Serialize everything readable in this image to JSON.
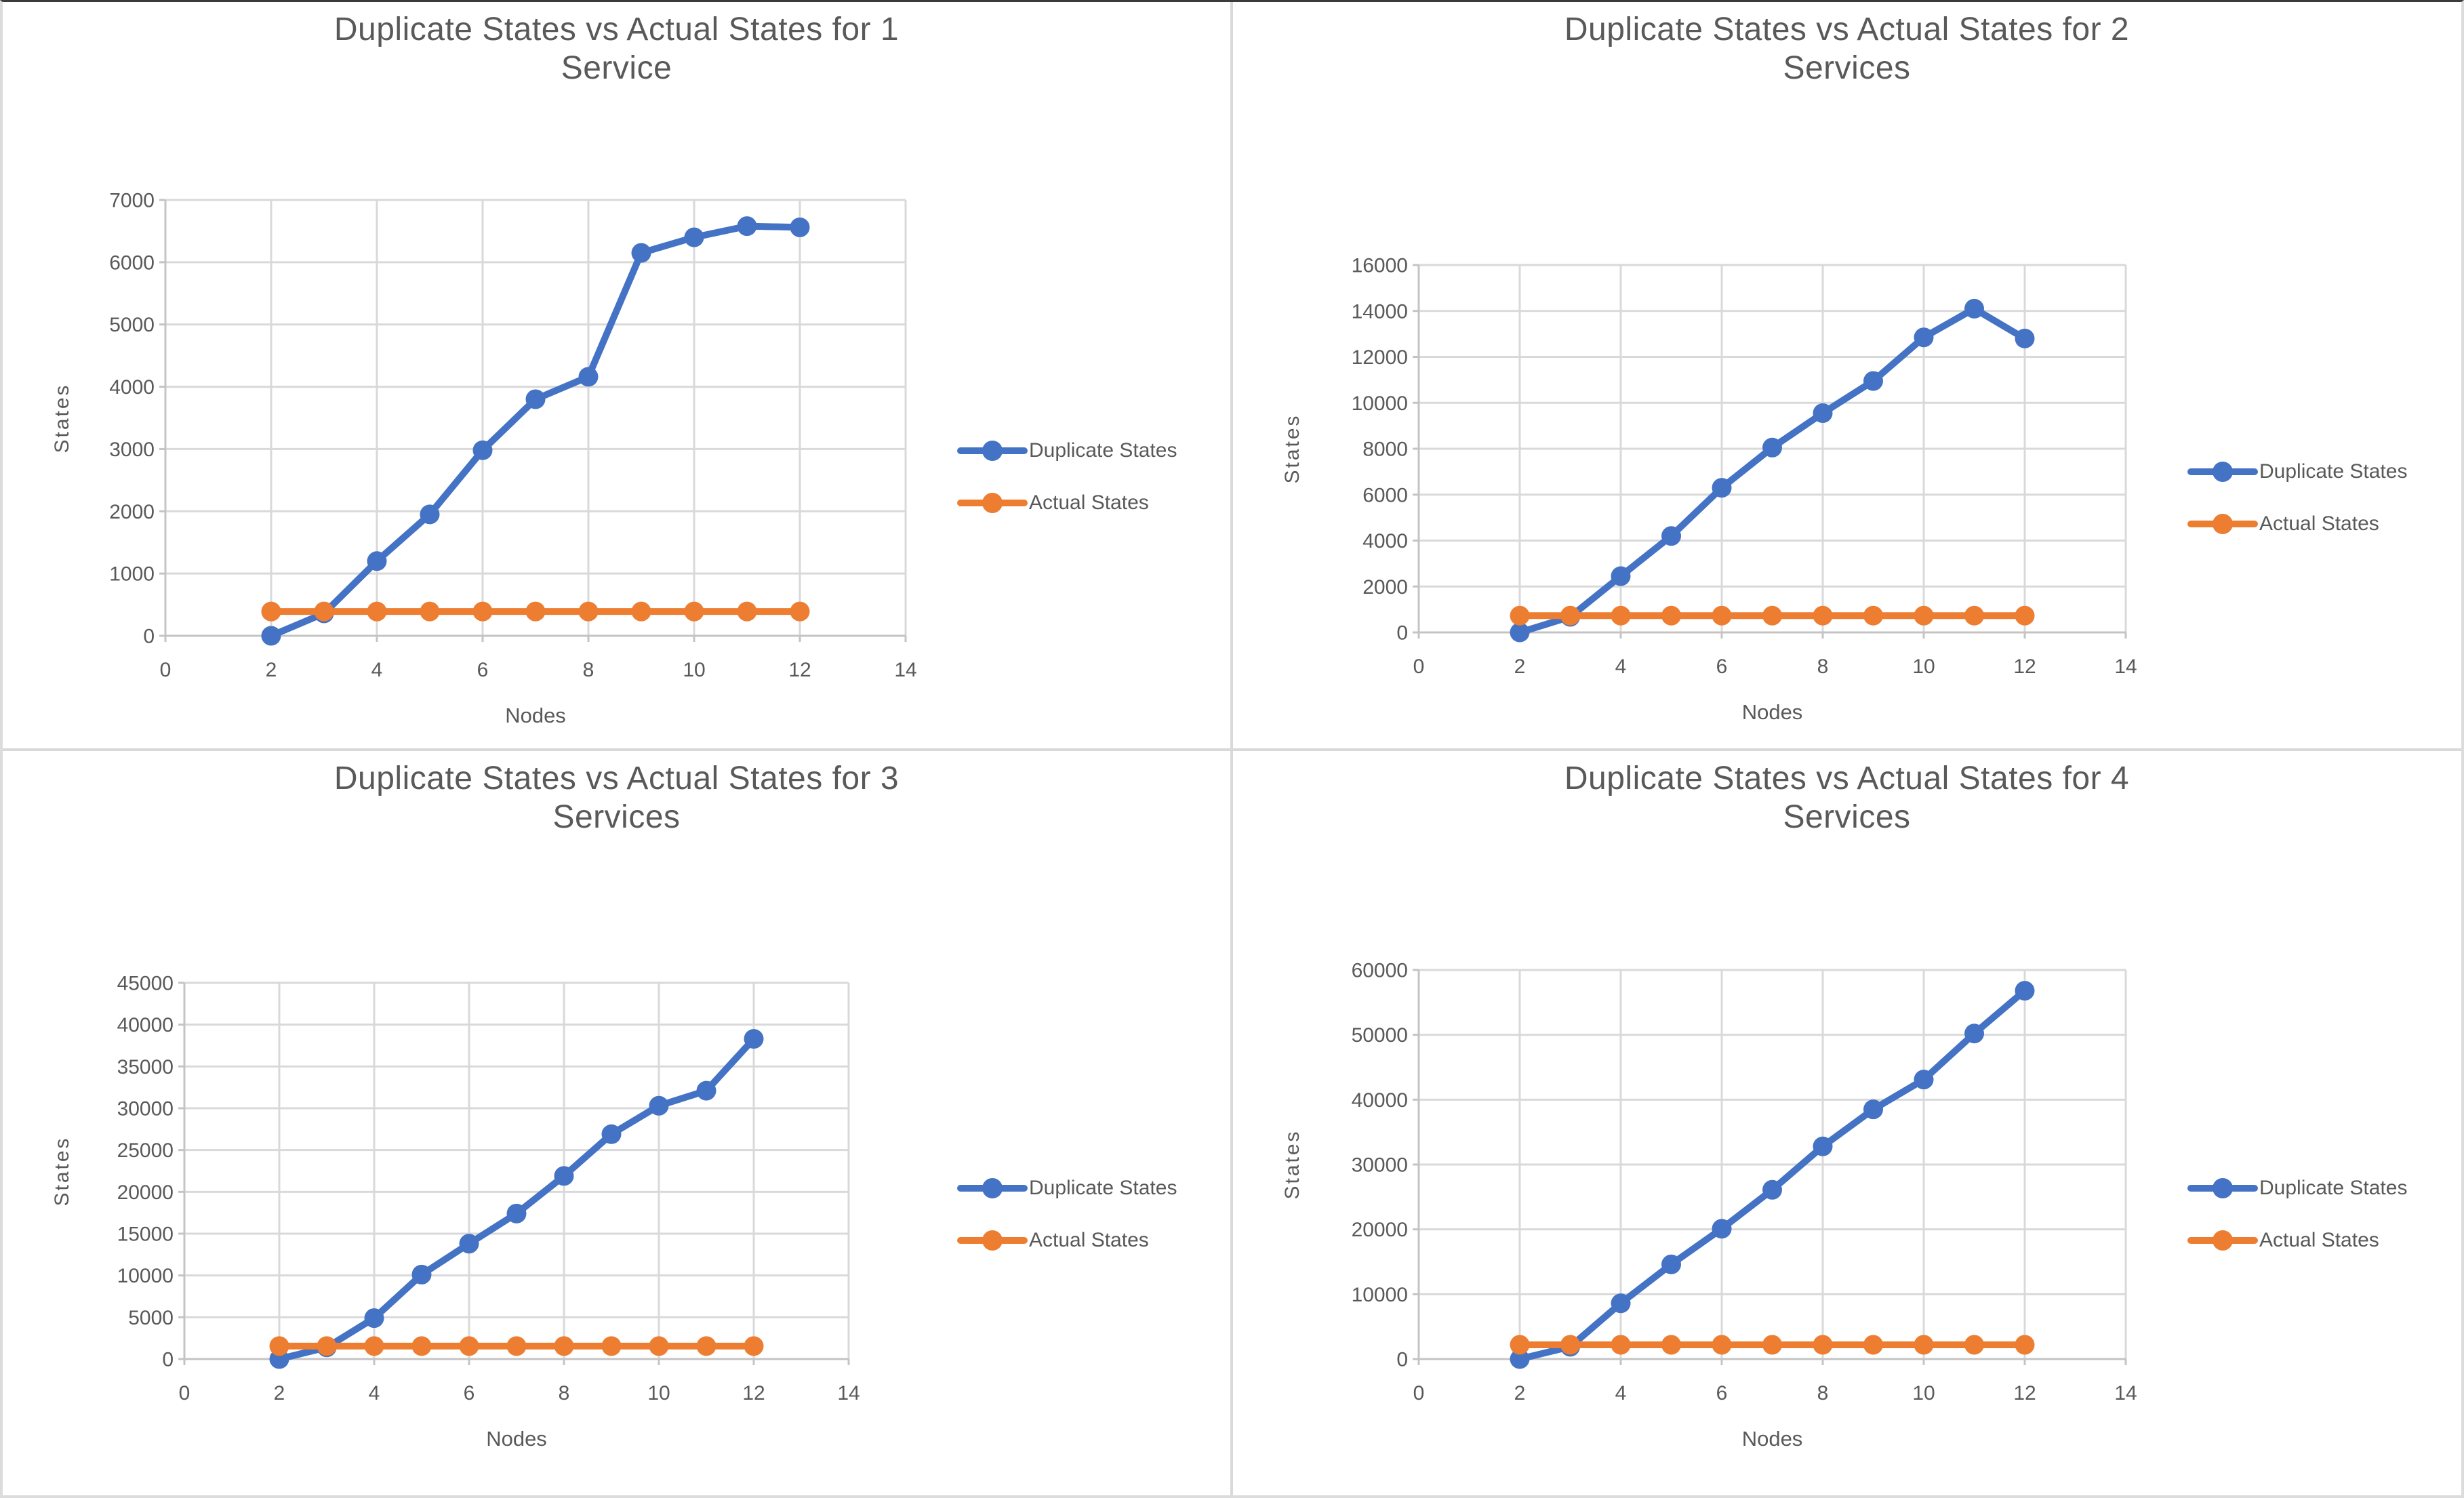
{
  "colors": {
    "duplicate_series": "#4472C4",
    "actual_series": "#ED7D31",
    "text": "#595959",
    "gridline": "#D9D9D9",
    "axis_line": "#C4C4C4",
    "panel_divider": "#D9D9D9"
  },
  "chart_data": [
    {
      "type": "line",
      "title_line1": "Duplicate States vs Actual States for 1",
      "title_line2": "Service",
      "xlabel": "Nodes",
      "ylabel": "States",
      "x": [
        2,
        3,
        4,
        5,
        6,
        7,
        8,
        9,
        10,
        11,
        12
      ],
      "series": [
        {
          "name": "Duplicate States",
          "color": "#4472C4",
          "values": [
            0,
            360,
            1200,
            1950,
            2980,
            3800,
            4160,
            6150,
            6400,
            6580,
            6560
          ]
        },
        {
          "name": "Actual States",
          "color": "#ED7D31",
          "values": [
            390,
            390,
            390,
            390,
            390,
            390,
            390,
            390,
            390,
            390,
            390
          ]
        }
      ],
      "xlim": [
        0,
        14
      ],
      "xtick_step": 2,
      "ylim": [
        0,
        7000
      ],
      "ytick_step": 1000,
      "grid": true,
      "legend_position": "right"
    },
    {
      "type": "line",
      "title_line1": "Duplicate States vs Actual States for 2",
      "title_line2": "Services",
      "xlabel": "Nodes",
      "ylabel": "States",
      "x": [
        2,
        3,
        4,
        5,
        6,
        7,
        8,
        9,
        10,
        11,
        12
      ],
      "series": [
        {
          "name": "Duplicate States",
          "color": "#4472C4",
          "values": [
            0,
            680,
            2450,
            4200,
            6300,
            8050,
            9550,
            10950,
            12850,
            14100,
            12800
          ]
        },
        {
          "name": "Actual States",
          "color": "#ED7D31",
          "values": [
            730,
            730,
            730,
            730,
            730,
            730,
            730,
            730,
            730,
            730,
            730
          ]
        }
      ],
      "xlim": [
        0,
        14
      ],
      "xtick_step": 2,
      "ylim": [
        0,
        16000
      ],
      "ytick_step": 2000,
      "grid": true,
      "legend_position": "right"
    },
    {
      "type": "line",
      "title_line1": "Duplicate States vs Actual States for 3",
      "title_line2": "Services",
      "xlabel": "Nodes",
      "ylabel": "States",
      "x": [
        2,
        3,
        4,
        5,
        6,
        7,
        8,
        9,
        10,
        11,
        12
      ],
      "series": [
        {
          "name": "Duplicate States",
          "color": "#4472C4",
          "values": [
            0,
            1400,
            4900,
            10100,
            13800,
            17400,
            21900,
            26900,
            30300,
            32100,
            38300
          ]
        },
        {
          "name": "Actual States",
          "color": "#ED7D31",
          "values": [
            1550,
            1550,
            1550,
            1550,
            1550,
            1550,
            1550,
            1550,
            1550,
            1550,
            1550
          ]
        }
      ],
      "xlim": [
        0,
        14
      ],
      "xtick_step": 2,
      "ylim": [
        0,
        45000
      ],
      "ytick_step": 5000,
      "grid": true,
      "legend_position": "right"
    },
    {
      "type": "line",
      "title_line1": "Duplicate States vs Actual States for 4",
      "title_line2": "Services",
      "xlabel": "Nodes",
      "ylabel": "States",
      "x": [
        2,
        3,
        4,
        5,
        6,
        7,
        8,
        9,
        10,
        11,
        12
      ],
      "series": [
        {
          "name": "Duplicate States",
          "color": "#4472C4",
          "values": [
            0,
            1900,
            8600,
            14600,
            20100,
            26100,
            32800,
            38500,
            43100,
            50200,
            56800
          ]
        },
        {
          "name": "Actual States",
          "color": "#ED7D31",
          "values": [
            2200,
            2200,
            2200,
            2200,
            2200,
            2200,
            2200,
            2200,
            2200,
            2200,
            2200
          ]
        }
      ],
      "xlim": [
        0,
        14
      ],
      "xtick_step": 2,
      "ylim": [
        0,
        60000
      ],
      "ytick_step": 10000,
      "grid": true,
      "legend_position": "right"
    }
  ]
}
